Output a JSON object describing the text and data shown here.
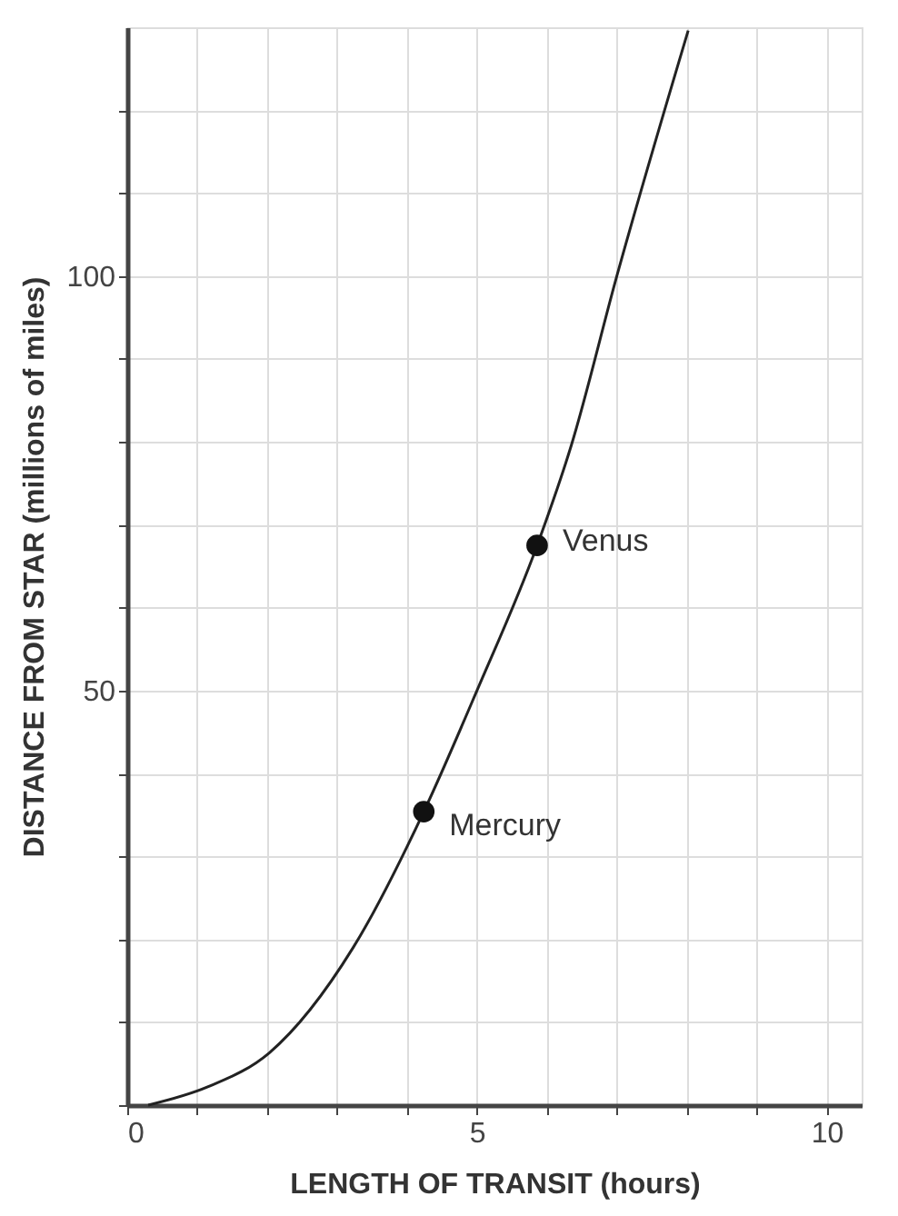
{
  "chart_data": {
    "type": "line",
    "xlabel": "LENGTH OF TRANSIT (hours)",
    "ylabel": "DISTANCE FROM STAR  (millions of miles)",
    "xlim": [
      0,
      10.5
    ],
    "ylim": [
      0,
      130
    ],
    "xticks": [
      0,
      {
        "value": 1,
        "label": null
      },
      {
        "value": 2,
        "label": null
      },
      {
        "value": 3,
        "label": null
      },
      {
        "value": 4,
        "label": null
      },
      5,
      {
        "value": 6,
        "label": null
      },
      {
        "value": 7,
        "label": null
      },
      {
        "value": 8,
        "label": null
      },
      {
        "value": 9,
        "label": null
      },
      10
    ],
    "yticks": [
      {
        "value": 0,
        "label": null
      },
      {
        "value": 10,
        "label": null
      },
      {
        "value": 20,
        "label": null
      },
      {
        "value": 30,
        "label": null
      },
      {
        "value": 40,
        "label": null
      },
      50,
      {
        "value": 60,
        "label": null
      },
      {
        "value": 70,
        "label": null
      },
      {
        "value": 80,
        "label": null
      },
      {
        "value": 90,
        "label": null
      },
      100,
      {
        "value": 110,
        "label": null
      },
      {
        "value": 120,
        "label": null
      }
    ],
    "grid": true,
    "series": [
      {
        "color": "#222222",
        "marker": "none",
        "line_style": "solid",
        "x": [
          0.3,
          1.15,
          2.03,
          3.23,
          4.24,
          5.0,
          5.86,
          6.35,
          7.0,
          8.02
        ],
        "values": [
          0,
          2.2,
          6.3,
          19,
          35.4,
          50,
          67.5,
          79.6,
          100,
          129.6
        ]
      },
      {
        "name": "Mercury",
        "type": "scatter",
        "color": "#111111",
        "marker": "circle",
        "x": [
          4.24
        ],
        "values": [
          35.4
        ]
      },
      {
        "name": "Venus",
        "type": "scatter",
        "color": "#111111",
        "marker": "circle",
        "x": [
          5.86
        ],
        "values": [
          67.5
        ]
      }
    ]
  }
}
